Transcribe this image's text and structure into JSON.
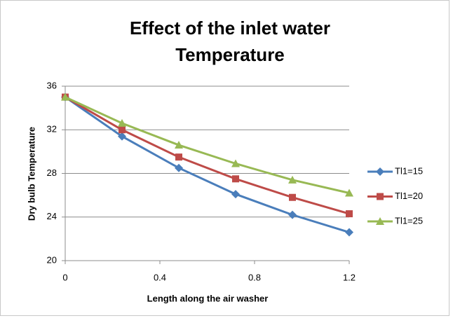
{
  "chart_data": {
    "type": "line",
    "title": [
      "Effect of the inlet water",
      "Temperature"
    ],
    "x_label": "Length along the air washer",
    "y_label": "Dry bulb Temperature",
    "x": [
      0,
      0.24,
      0.48,
      0.72,
      0.96,
      1.2
    ],
    "series": [
      {
        "name": "Tl1=15",
        "color": "#4a7ebb",
        "marker": "diamond",
        "values": [
          35,
          31.4,
          28.5,
          26.1,
          24.2,
          22.6
        ]
      },
      {
        "name": "Tl1=20",
        "color": "#be4b48",
        "marker": "square",
        "values": [
          35,
          32,
          29.5,
          27.5,
          25.8,
          24.3
        ]
      },
      {
        "name": "Tl1=25",
        "color": "#98b954",
        "marker": "triangle",
        "values": [
          35,
          32.6,
          30.6,
          28.9,
          27.4,
          26.2
        ]
      }
    ],
    "xlim": [
      0,
      1.2
    ],
    "xticks": [
      0,
      0.4,
      0.8,
      1.2
    ],
    "ylim": [
      20,
      36
    ],
    "yticks": [
      20,
      24,
      28,
      32,
      36
    ],
    "grid": true,
    "legend": "right"
  }
}
